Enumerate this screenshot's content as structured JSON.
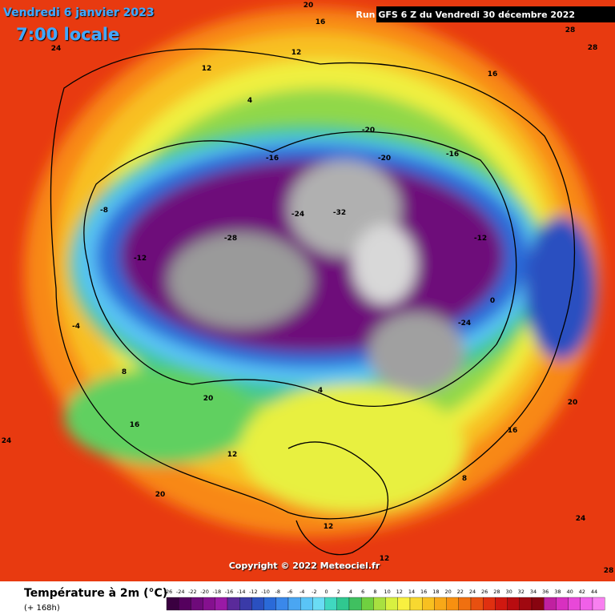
{
  "header": {
    "date": "Vendredi 6 janvier 2023",
    "time": "7:00 locale",
    "run": "Run GFS 6 Z du Vendredi 30 décembre 2022"
  },
  "copyright": "Copyright © 2022 Meteociel.fr",
  "legend": {
    "title": "Température à 2m (°C)",
    "subtitle": "(+ 168h)",
    "ticks": [
      -26,
      -24,
      -22,
      -20,
      -18,
      -16,
      -14,
      -12,
      -10,
      -8,
      -6,
      -4,
      -2,
      0,
      2,
      4,
      6,
      8,
      10,
      12,
      14,
      16,
      18,
      20,
      22,
      24,
      26,
      28,
      30,
      32,
      34,
      36,
      38,
      40,
      42,
      44
    ],
    "colors": [
      "#3a0040",
      "#55005e",
      "#6e0a7a",
      "#85108f",
      "#9a1aa6",
      "#5a2a9a",
      "#3a3aa8",
      "#2a50c0",
      "#2a6ad8",
      "#3a88ea",
      "#4aa6f2",
      "#5ac4f6",
      "#6adcf4",
      "#40d8c0",
      "#30c890",
      "#40c060",
      "#70d040",
      "#a8e040",
      "#d8f040",
      "#f8f040",
      "#f8d830",
      "#f8c020",
      "#f8a818",
      "#f89010",
      "#f07010",
      "#e85010",
      "#e03010",
      "#d01810",
      "#b80c10",
      "#a00810",
      "#880410",
      "#c020a0",
      "#d830c0",
      "#e848d8",
      "#f060e8",
      "#f880f0"
    ]
  },
  "map_labels": [
    24,
    20,
    16,
    12,
    28,
    28,
    16,
    12,
    4,
    -20,
    -16,
    -24,
    -32,
    -28,
    -12,
    -8,
    -4,
    0,
    8,
    4,
    12,
    16,
    20,
    24,
    12,
    20,
    8,
    12,
    24,
    28,
    -24,
    -20,
    -16,
    -12,
    16,
    20
  ]
}
